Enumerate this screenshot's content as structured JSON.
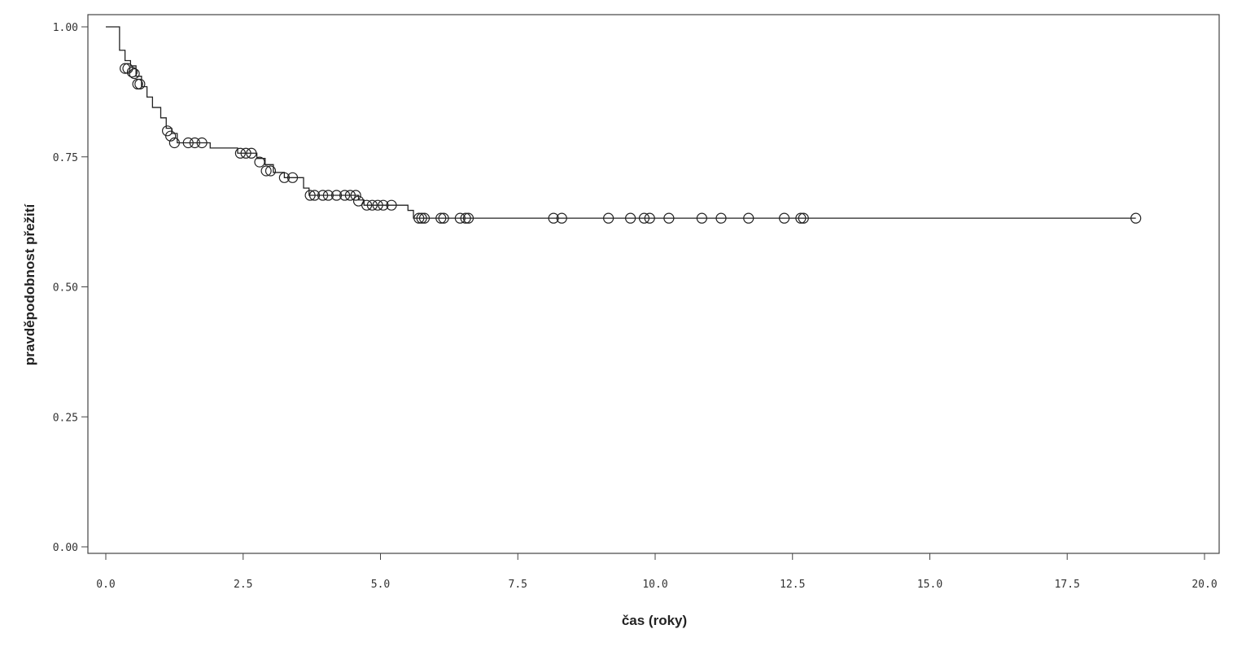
{
  "chart_data": {
    "type": "line",
    "title": "",
    "xlabel": "čas (roky)",
    "ylabel": "pravděpodobnost přežití",
    "xlim": [
      0,
      20
    ],
    "ylim": [
      0,
      1
    ],
    "xticks": [
      0,
      2.5,
      5,
      7.5,
      10,
      12.5,
      15,
      17.5,
      20
    ],
    "xtick_labels": [
      "0.0",
      "2.5",
      "5.0",
      "7.5",
      "10.0",
      "12.5",
      "15.0",
      "17.5",
      "20.0"
    ],
    "yticks": [
      0,
      0.25,
      0.5,
      0.75,
      1
    ],
    "ytick_labels": [
      "0.00",
      "0.25",
      "0.50",
      "0.75",
      "1.00"
    ],
    "grid": false,
    "legend": "none",
    "line_color": "#222222",
    "series": [
      {
        "steps": [
          [
            0.0,
            1.0
          ],
          [
            0.25,
            0.955
          ],
          [
            0.35,
            0.935
          ],
          [
            0.45,
            0.925
          ],
          [
            0.55,
            0.905
          ],
          [
            0.65,
            0.885
          ],
          [
            0.75,
            0.865
          ],
          [
            0.85,
            0.845
          ],
          [
            1.0,
            0.825
          ],
          [
            1.1,
            0.805
          ],
          [
            1.2,
            0.795
          ],
          [
            1.3,
            0.777
          ],
          [
            1.9,
            0.767
          ],
          [
            2.4,
            0.757
          ],
          [
            2.75,
            0.747
          ],
          [
            2.9,
            0.735
          ],
          [
            3.05,
            0.72
          ],
          [
            3.25,
            0.71
          ],
          [
            3.6,
            0.69
          ],
          [
            3.7,
            0.676
          ],
          [
            4.6,
            0.667
          ],
          [
            4.7,
            0.657
          ],
          [
            5.5,
            0.647
          ],
          [
            5.6,
            0.632
          ],
          [
            18.75,
            0.632
          ]
        ],
        "censored": [
          [
            0.35,
            0.92
          ],
          [
            0.4,
            0.92
          ],
          [
            0.48,
            0.913
          ],
          [
            0.52,
            0.91
          ],
          [
            0.58,
            0.89
          ],
          [
            0.62,
            0.89
          ],
          [
            1.12,
            0.8
          ],
          [
            1.18,
            0.79
          ],
          [
            1.25,
            0.777
          ],
          [
            1.5,
            0.777
          ],
          [
            1.62,
            0.777
          ],
          [
            1.75,
            0.777
          ],
          [
            2.45,
            0.757
          ],
          [
            2.55,
            0.757
          ],
          [
            2.65,
            0.757
          ],
          [
            2.8,
            0.74
          ],
          [
            2.92,
            0.723
          ],
          [
            3.0,
            0.723
          ],
          [
            3.25,
            0.71
          ],
          [
            3.4,
            0.71
          ],
          [
            3.72,
            0.676
          ],
          [
            3.8,
            0.676
          ],
          [
            3.95,
            0.676
          ],
          [
            4.05,
            0.676
          ],
          [
            4.2,
            0.676
          ],
          [
            4.35,
            0.676
          ],
          [
            4.45,
            0.676
          ],
          [
            4.55,
            0.676
          ],
          [
            4.6,
            0.665
          ],
          [
            4.75,
            0.657
          ],
          [
            4.85,
            0.657
          ],
          [
            4.95,
            0.657
          ],
          [
            5.05,
            0.657
          ],
          [
            5.2,
            0.657
          ],
          [
            5.7,
            0.632
          ],
          [
            5.75,
            0.632
          ],
          [
            5.8,
            0.632
          ],
          [
            6.1,
            0.632
          ],
          [
            6.15,
            0.632
          ],
          [
            6.45,
            0.632
          ],
          [
            6.55,
            0.632
          ],
          [
            6.6,
            0.632
          ],
          [
            8.15,
            0.632
          ],
          [
            8.3,
            0.632
          ],
          [
            9.15,
            0.632
          ],
          [
            9.55,
            0.632
          ],
          [
            9.8,
            0.632
          ],
          [
            9.9,
            0.632
          ],
          [
            10.25,
            0.632
          ],
          [
            10.85,
            0.632
          ],
          [
            11.2,
            0.632
          ],
          [
            11.7,
            0.632
          ],
          [
            12.35,
            0.632
          ],
          [
            12.65,
            0.632
          ],
          [
            12.7,
            0.632
          ],
          [
            18.75,
            0.632
          ]
        ]
      }
    ]
  }
}
